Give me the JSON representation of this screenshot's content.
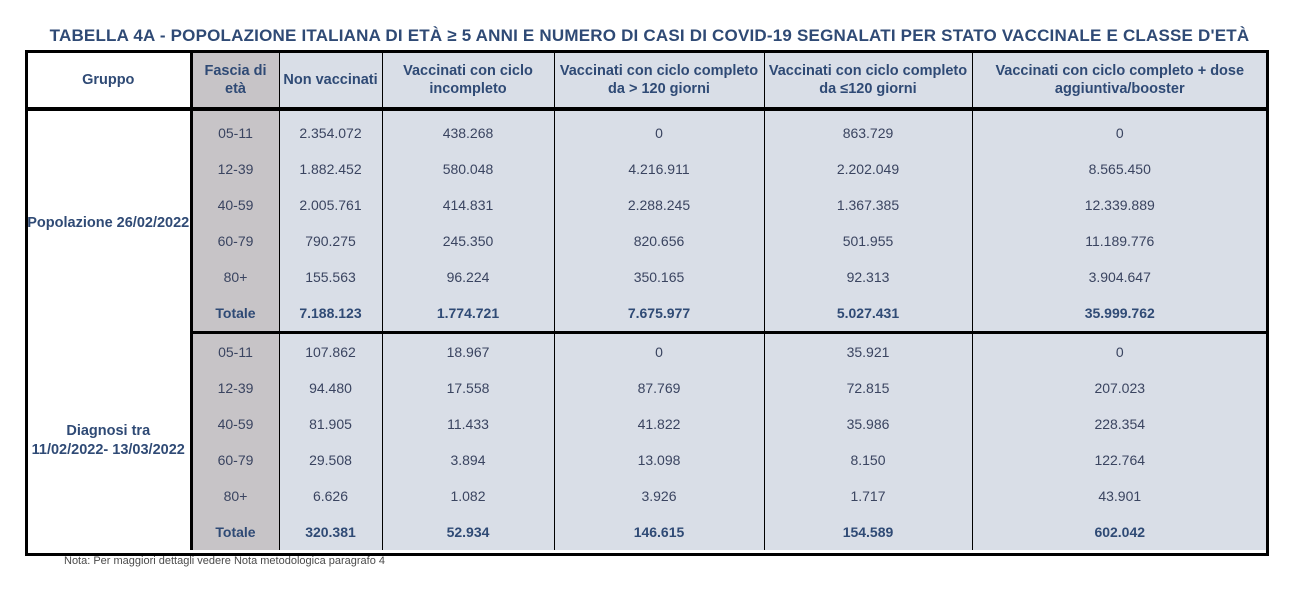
{
  "title": "TABELLA 4A - POPOLAZIONE ITALIANA DI ETÀ ≥ 5 ANNI E NUMERO DI CASI DI COVID-19 SEGNALATI PER STATO VACCINALE E CLASSE D'ETÀ",
  "headers": {
    "group": "Gruppo",
    "age": "Fascia di età",
    "non_vacc": "Non vaccinati",
    "incomplete": "Vaccinati con ciclo incompleto",
    "complete_gt120": "Vaccinati con ciclo completo da > 120 giorni",
    "complete_le120": "Vaccinati con ciclo completo da ≤120 giorni",
    "booster": "Vaccinati con ciclo completo + dose aggiuntiva/booster"
  },
  "sections": [
    {
      "label": "Popolazione 26/02/2022",
      "rows": [
        {
          "age": "05-11",
          "non_vacc": "2.354.072",
          "incomplete": "438.268",
          "complete_gt120": "0",
          "complete_le120": "863.729",
          "booster": "0"
        },
        {
          "age": "12-39",
          "non_vacc": "1.882.452",
          "incomplete": "580.048",
          "complete_gt120": "4.216.911",
          "complete_le120": "2.202.049",
          "booster": "8.565.450"
        },
        {
          "age": "40-59",
          "non_vacc": "2.005.761",
          "incomplete": "414.831",
          "complete_gt120": "2.288.245",
          "complete_le120": "1.367.385",
          "booster": "12.339.889"
        },
        {
          "age": "60-79",
          "non_vacc": "790.275",
          "incomplete": "245.350",
          "complete_gt120": "820.656",
          "complete_le120": "501.955",
          "booster": "11.189.776"
        },
        {
          "age": "80+",
          "non_vacc": "155.563",
          "incomplete": "96.224",
          "complete_gt120": "350.165",
          "complete_le120": "92.313",
          "booster": "3.904.647"
        },
        {
          "age": "Totale",
          "non_vacc": "7.188.123",
          "incomplete": "1.774.721",
          "complete_gt120": "7.675.977",
          "complete_le120": "5.027.431",
          "booster": "35.999.762"
        }
      ]
    },
    {
      "label": "Diagnosi tra 11/02/2022- 13/03/2022",
      "rows": [
        {
          "age": "05-11",
          "non_vacc": "107.862",
          "incomplete": "18.967",
          "complete_gt120": "0",
          "complete_le120": "35.921",
          "booster": "0"
        },
        {
          "age": "12-39",
          "non_vacc": "94.480",
          "incomplete": "17.558",
          "complete_gt120": "87.769",
          "complete_le120": "72.815",
          "booster": "207.023"
        },
        {
          "age": "40-59",
          "non_vacc": "81.905",
          "incomplete": "11.433",
          "complete_gt120": "41.822",
          "complete_le120": "35.986",
          "booster": "228.354"
        },
        {
          "age": "60-79",
          "non_vacc": "29.508",
          "incomplete": "3.894",
          "complete_gt120": "13.098",
          "complete_le120": "8.150",
          "booster": "122.764"
        },
        {
          "age": "80+",
          "non_vacc": "6.626",
          "incomplete": "1.082",
          "complete_gt120": "3.926",
          "complete_le120": "1.717",
          "booster": "43.901"
        },
        {
          "age": "Totale",
          "non_vacc": "320.381",
          "incomplete": "52.934",
          "complete_gt120": "146.615",
          "complete_le120": "154.589",
          "booster": "602.042"
        }
      ]
    }
  ],
  "note": "Nota: Per maggiori dettagli vedere Nota metodologica paragrafo 4",
  "colors": {
    "title": "#2f4a75",
    "age_column_bg": "#c7c4c7",
    "value_column_bg": "#d9dee7",
    "border": "#000000"
  }
}
